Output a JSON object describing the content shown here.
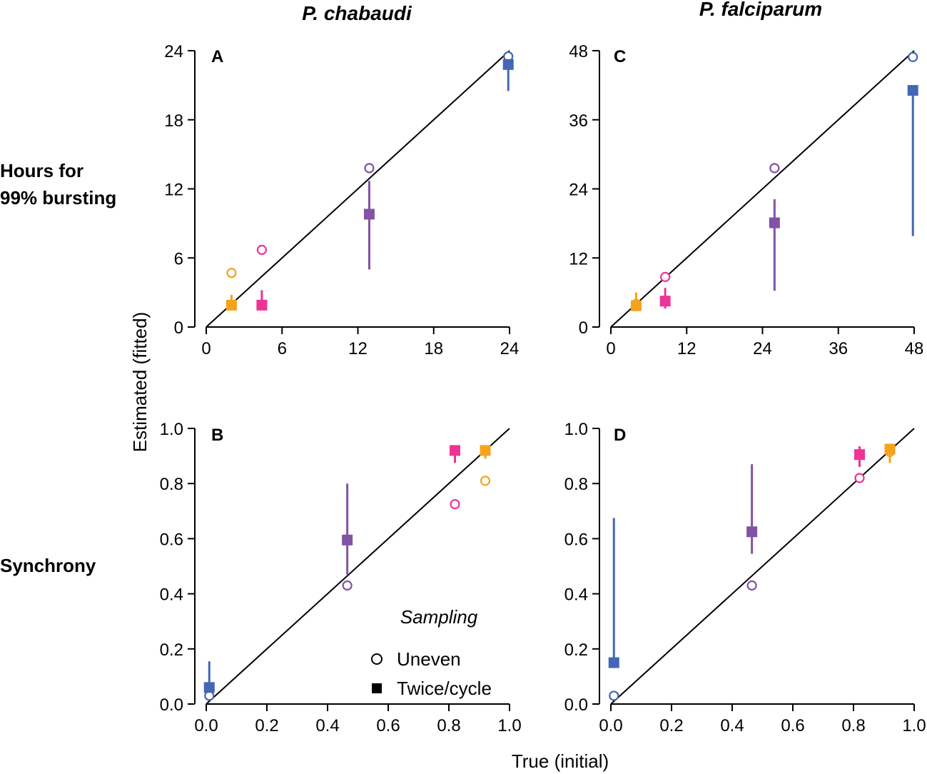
{
  "figure": {
    "col_titles": [
      "P. chabaudi",
      "P. falciparum"
    ],
    "row_titles": [
      [
        "Hours for",
        "99% bursting"
      ],
      [
        "Synchrony"
      ]
    ],
    "ylabel": "Estimated (fitted)",
    "xlabel": "True (initial)",
    "legend": {
      "title": "Sampling",
      "entries": [
        {
          "label": "Uneven",
          "marker": "open-circle"
        },
        {
          "label": "Twice/cycle",
          "marker": "filled-square"
        }
      ]
    }
  },
  "colors": {
    "blue": "#4466b4",
    "purple": "#8252a5",
    "pink": "#ec3494",
    "orange": "#f7a21d",
    "identity_line": "#000000"
  },
  "chart_data": [
    {
      "panel": "A",
      "type": "scatter",
      "xlim": [
        0,
        24
      ],
      "ylim": [
        0,
        24
      ],
      "xticks": [
        0,
        6,
        12,
        18,
        24
      ],
      "yticks": [
        0,
        6,
        12,
        18,
        24
      ],
      "identity_line": true,
      "series": [
        {
          "name": "Uneven",
          "marker": "open-circle",
          "points": [
            {
              "x": 2.0,
              "y": 4.7,
              "color": "orange"
            },
            {
              "x": 4.4,
              "y": 6.7,
              "color": "pink"
            },
            {
              "x": 12.9,
              "y": 13.8,
              "color": "purple"
            },
            {
              "x": 23.9,
              "y": 23.5,
              "color": "blue"
            }
          ]
        },
        {
          "name": "Twice/cycle",
          "marker": "filled-square",
          "points": [
            {
              "x": 2.0,
              "y": 1.9,
              "lo": 1.9,
              "hi": 2.8,
              "color": "orange"
            },
            {
              "x": 4.4,
              "y": 1.9,
              "lo": 1.9,
              "hi": 3.2,
              "color": "pink"
            },
            {
              "x": 12.9,
              "y": 9.8,
              "lo": 5.0,
              "hi": 12.7,
              "color": "purple"
            },
            {
              "x": 23.9,
              "y": 22.8,
              "lo": 20.5,
              "hi": 22.8,
              "color": "blue"
            }
          ]
        }
      ]
    },
    {
      "panel": "B",
      "type": "scatter",
      "xlim": [
        0,
        1
      ],
      "ylim": [
        0,
        1
      ],
      "xticks": [
        "0.0",
        "0.2",
        "0.4",
        "0.6",
        "0.8",
        "1.0"
      ],
      "yticks": [
        "0.0",
        "0.2",
        "0.4",
        "0.6",
        "0.8",
        "1.0"
      ],
      "identity_line": true,
      "series": [
        {
          "name": "Uneven",
          "marker": "open-circle",
          "points": [
            {
              "x": 0.01,
              "y": 0.03,
              "color": "blue"
            },
            {
              "x": 0.465,
              "y": 0.43,
              "color": "purple"
            },
            {
              "x": 0.82,
              "y": 0.725,
              "color": "pink"
            },
            {
              "x": 0.92,
              "y": 0.81,
              "color": "orange"
            }
          ]
        },
        {
          "name": "Twice/cycle",
          "marker": "filled-square",
          "points": [
            {
              "x": 0.01,
              "y": 0.06,
              "lo": 0.06,
              "hi": 0.155,
              "color": "blue"
            },
            {
              "x": 0.465,
              "y": 0.595,
              "lo": 0.47,
              "hi": 0.8,
              "color": "purple"
            },
            {
              "x": 0.82,
              "y": 0.92,
              "lo": 0.875,
              "hi": 0.92,
              "color": "pink"
            },
            {
              "x": 0.92,
              "y": 0.92,
              "lo": 0.89,
              "hi": 0.92,
              "color": "orange"
            }
          ]
        }
      ]
    },
    {
      "panel": "C",
      "type": "scatter",
      "xlim": [
        0,
        48
      ],
      "ylim": [
        0,
        48
      ],
      "xticks": [
        0,
        12,
        24,
        36,
        48
      ],
      "yticks": [
        0,
        12,
        24,
        36,
        48
      ],
      "identity_line": true,
      "series": [
        {
          "name": "Uneven",
          "marker": "open-circle",
          "points": [
            {
              "x": 4.0,
              "y": 4.0,
              "color": "orange"
            },
            {
              "x": 8.6,
              "y": 8.7,
              "color": "pink"
            },
            {
              "x": 25.9,
              "y": 27.6,
              "color": "purple"
            },
            {
              "x": 47.8,
              "y": 46.9,
              "color": "blue"
            }
          ]
        },
        {
          "name": "Twice/cycle",
          "marker": "filled-square",
          "points": [
            {
              "x": 4.0,
              "y": 3.7,
              "lo": 3.7,
              "hi": 6.0,
              "color": "orange"
            },
            {
              "x": 8.6,
              "y": 4.5,
              "lo": 3.2,
              "hi": 6.8,
              "color": "pink"
            },
            {
              "x": 25.9,
              "y": 18.1,
              "lo": 6.3,
              "hi": 22.2,
              "color": "purple"
            },
            {
              "x": 47.8,
              "y": 41.1,
              "lo": 15.8,
              "hi": 41.1,
              "color": "blue"
            }
          ]
        }
      ]
    },
    {
      "panel": "D",
      "type": "scatter",
      "xlim": [
        0,
        1
      ],
      "ylim": [
        0,
        1
      ],
      "xticks": [
        "0.0",
        "0.2",
        "0.4",
        "0.6",
        "0.8",
        "1.0"
      ],
      "yticks": [
        "0.0",
        "0.2",
        "0.4",
        "0.6",
        "0.8",
        "1.0"
      ],
      "identity_line": true,
      "series": [
        {
          "name": "Uneven",
          "marker": "open-circle",
          "points": [
            {
              "x": 0.01,
              "y": 0.03,
              "color": "blue"
            },
            {
              "x": 0.465,
              "y": 0.43,
              "color": "purple"
            },
            {
              "x": 0.82,
              "y": 0.82,
              "color": "pink"
            },
            {
              "x": 0.92,
              "y": 0.915,
              "color": "orange"
            }
          ]
        },
        {
          "name": "Twice/cycle",
          "marker": "filled-square",
          "points": [
            {
              "x": 0.01,
              "y": 0.15,
              "lo": 0.15,
              "hi": 0.675,
              "color": "blue"
            },
            {
              "x": 0.465,
              "y": 0.625,
              "lo": 0.545,
              "hi": 0.87,
              "color": "purple"
            },
            {
              "x": 0.82,
              "y": 0.905,
              "lo": 0.86,
              "hi": 0.935,
              "color": "pink"
            },
            {
              "x": 0.92,
              "y": 0.925,
              "lo": 0.875,
              "hi": 0.925,
              "color": "orange"
            }
          ]
        }
      ]
    }
  ]
}
